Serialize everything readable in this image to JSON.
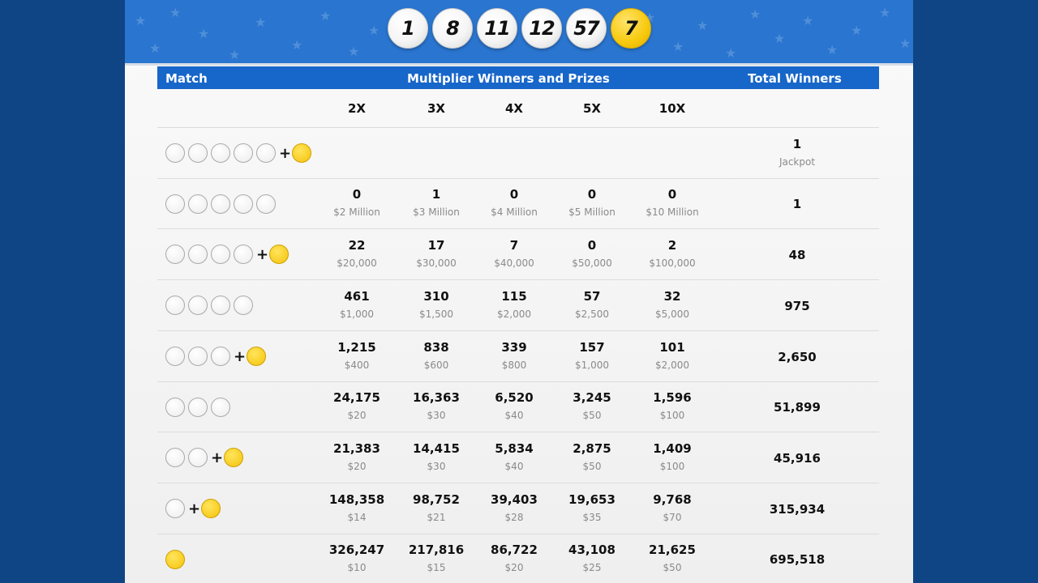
{
  "drawn_numbers": [
    "1",
    "8",
    "11",
    "12",
    "57"
  ],
  "mega_ball": "7",
  "colors": {
    "page_bg": "#0f4585",
    "banner": "#2a75cf",
    "header": "#1766c9",
    "gold": "#f7c90d"
  },
  "table": {
    "headers": {
      "match": "Match",
      "multiplier": "Multiplier Winners and Prizes",
      "total": "Total Winners"
    },
    "multipliers": [
      "2X",
      "3X",
      "4X",
      "5X",
      "10X"
    ],
    "rows": [
      {
        "white": 5,
        "gold": true,
        "cells": [],
        "total": "1",
        "total_label": "Jackpot"
      },
      {
        "white": 5,
        "gold": false,
        "cells": [
          {
            "n": "0",
            "p": "$2 Million"
          },
          {
            "n": "1",
            "p": "$3 Million"
          },
          {
            "n": "0",
            "p": "$4 Million"
          },
          {
            "n": "0",
            "p": "$5 Million"
          },
          {
            "n": "0",
            "p": "$10 Million"
          }
        ],
        "total": "1"
      },
      {
        "white": 4,
        "gold": true,
        "cells": [
          {
            "n": "22",
            "p": "$20,000"
          },
          {
            "n": "17",
            "p": "$30,000"
          },
          {
            "n": "7",
            "p": "$40,000"
          },
          {
            "n": "0",
            "p": "$50,000"
          },
          {
            "n": "2",
            "p": "$100,000"
          }
        ],
        "total": "48"
      },
      {
        "white": 4,
        "gold": false,
        "cells": [
          {
            "n": "461",
            "p": "$1,000"
          },
          {
            "n": "310",
            "p": "$1,500"
          },
          {
            "n": "115",
            "p": "$2,000"
          },
          {
            "n": "57",
            "p": "$2,500"
          },
          {
            "n": "32",
            "p": "$5,000"
          }
        ],
        "total": "975"
      },
      {
        "white": 3,
        "gold": true,
        "cells": [
          {
            "n": "1,215",
            "p": "$400"
          },
          {
            "n": "838",
            "p": "$600"
          },
          {
            "n": "339",
            "p": "$800"
          },
          {
            "n": "157",
            "p": "$1,000"
          },
          {
            "n": "101",
            "p": "$2,000"
          }
        ],
        "total": "2,650"
      },
      {
        "white": 3,
        "gold": false,
        "cells": [
          {
            "n": "24,175",
            "p": "$20"
          },
          {
            "n": "16,363",
            "p": "$30"
          },
          {
            "n": "6,520",
            "p": "$40"
          },
          {
            "n": "3,245",
            "p": "$50"
          },
          {
            "n": "1,596",
            "p": "$100"
          }
        ],
        "total": "51,899"
      },
      {
        "white": 2,
        "gold": true,
        "cells": [
          {
            "n": "21,383",
            "p": "$20"
          },
          {
            "n": "14,415",
            "p": "$30"
          },
          {
            "n": "5,834",
            "p": "$40"
          },
          {
            "n": "2,875",
            "p": "$50"
          },
          {
            "n": "1,409",
            "p": "$100"
          }
        ],
        "total": "45,916"
      },
      {
        "white": 1,
        "gold": true,
        "cells": [
          {
            "n": "148,358",
            "p": "$14"
          },
          {
            "n": "98,752",
            "p": "$21"
          },
          {
            "n": "39,403",
            "p": "$28"
          },
          {
            "n": "19,653",
            "p": "$35"
          },
          {
            "n": "9,768",
            "p": "$70"
          }
        ],
        "total": "315,934"
      },
      {
        "white": 0,
        "gold": true,
        "cells": [
          {
            "n": "326,247",
            "p": "$10"
          },
          {
            "n": "217,816",
            "p": "$15"
          },
          {
            "n": "86,722",
            "p": "$20"
          },
          {
            "n": "43,108",
            "p": "$25"
          },
          {
            "n": "21,625",
            "p": "$50"
          }
        ],
        "total": "695,518"
      }
    ]
  }
}
